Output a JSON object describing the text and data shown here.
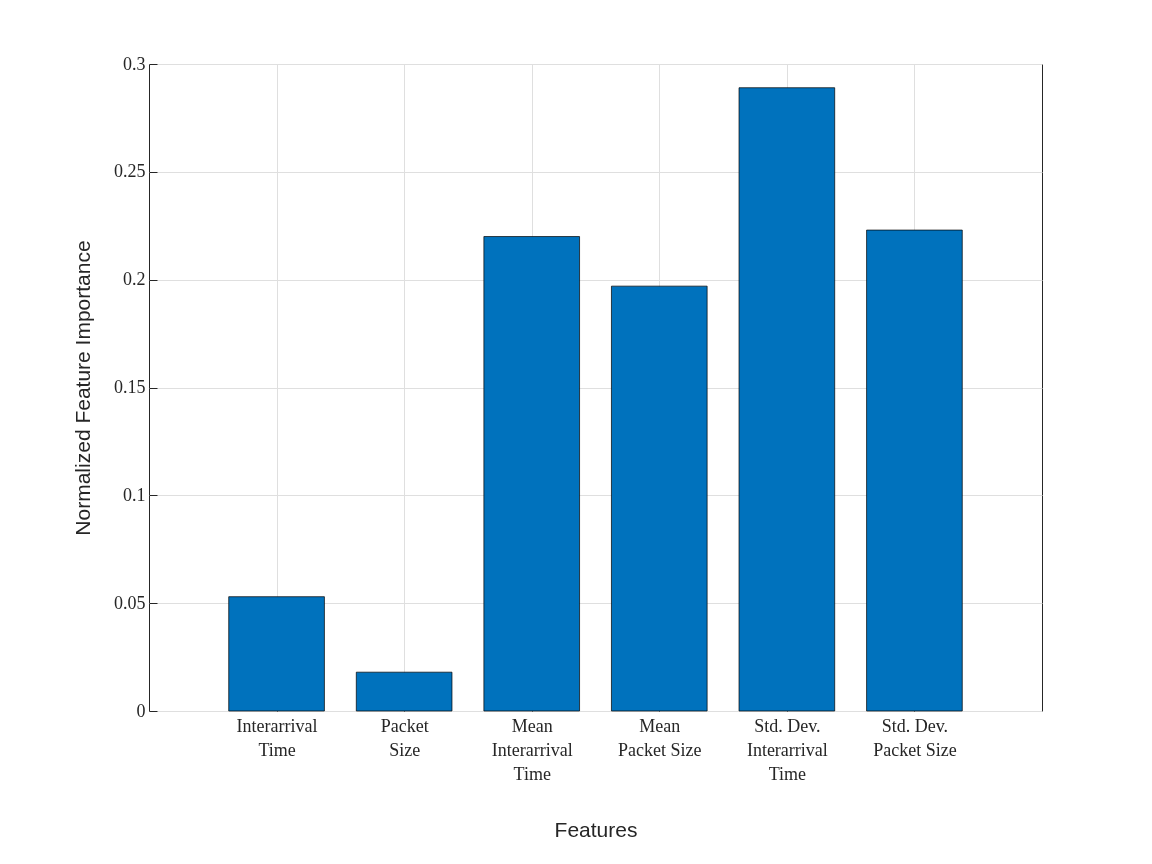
{
  "chart_data": {
    "type": "bar",
    "xlabel": "Features",
    "ylabel": "Normalized Feature Importance",
    "categories": [
      "Interarrival\nTime",
      "Packet\nSize",
      "Mean\nInterarrival\nTime",
      "Mean\nPacket Size",
      "Std. Dev.\nInterarrival\nTime",
      "Std. Dev.\nPacket Size"
    ],
    "values": [
      0.053,
      0.018,
      0.22,
      0.197,
      0.289,
      0.223
    ],
    "color": "#0072bd",
    "ylim": [
      0,
      0.3
    ],
    "yticks": [
      0,
      0.05,
      0.1,
      0.15,
      0.2,
      0.25,
      0.3
    ],
    "grid": true
  }
}
